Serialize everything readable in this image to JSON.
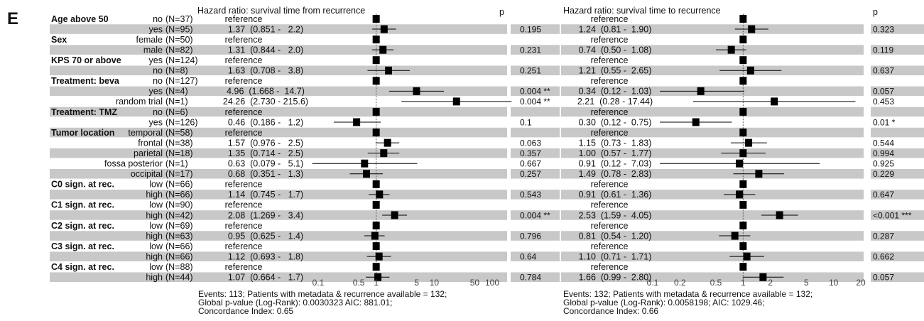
{
  "panel_letter": "E",
  "chart_data": [
    {
      "type": "forest",
      "title": "Hazard ratio: survival time from recurrence",
      "p_header": "p",
      "x_scale": "log",
      "xlim": [
        0.03,
        200
      ],
      "x_ticks": [
        "0.1",
        "0.5",
        "1",
        "5",
        "10",
        "50",
        "100"
      ],
      "reference_line": 1,
      "rows": [
        {
          "label": "Age above 50",
          "level": "no",
          "n": "(N=37)",
          "hr_text": "reference",
          "p": "",
          "hr": 1,
          "low": null,
          "high": null
        },
        {
          "label": "",
          "level": "yes",
          "n": "(N=95)",
          "hr_text": "1.37  (0.851 -   2.2)",
          "p": "0.195",
          "hr": 1.37,
          "low": 0.851,
          "high": 2.2
        },
        {
          "label": "Sex",
          "level": "female",
          "n": "(N=50)",
          "hr_text": "reference",
          "p": "",
          "hr": 1,
          "low": null,
          "high": null
        },
        {
          "label": "",
          "level": "male",
          "n": "(N=82)",
          "hr_text": "1.31  (0.844 -   2.0)",
          "p": "0.231",
          "hr": 1.31,
          "low": 0.844,
          "high": 2.0
        },
        {
          "label": "KPS 70 or above",
          "level": "yes",
          "n": "(N=124)",
          "hr_text": "reference",
          "p": "",
          "hr": 1,
          "low": null,
          "high": null
        },
        {
          "label": "",
          "level": "no",
          "n": "(N=8)",
          "hr_text": "1.63  (0.708 -   3.8)",
          "p": "0.251",
          "hr": 1.63,
          "low": 0.708,
          "high": 3.8
        },
        {
          "label": "Treatment: beva",
          "level": "no",
          "n": "(N=127)",
          "hr_text": "reference",
          "p": "",
          "hr": 1,
          "low": null,
          "high": null
        },
        {
          "label": "",
          "level": "yes",
          "n": "(N=4)",
          "hr_text": "4.96  (1.668 -  14.7)",
          "p": "0.004 **",
          "hr": 4.96,
          "low": 1.668,
          "high": 14.7
        },
        {
          "label": "",
          "level": "random trial",
          "n": "(N=1)",
          "hr_text": "24.26  (2.730 - 215.6)",
          "p": "0.004 **",
          "hr": 24.26,
          "low": 2.73,
          "high": 215.6
        },
        {
          "label": "Treatment: TMZ",
          "level": "no",
          "n": "(N=6)",
          "hr_text": "reference",
          "p": "",
          "hr": 1,
          "low": null,
          "high": null
        },
        {
          "label": "",
          "level": "yes",
          "n": "(N=126)",
          "hr_text": "0.46  (0.186 -   1.2)",
          "p": "0.1",
          "hr": 0.46,
          "low": 0.186,
          "high": 1.2
        },
        {
          "label": "Tumor location",
          "level": "temporal",
          "n": "(N=58)",
          "hr_text": "reference",
          "p": "",
          "hr": 1,
          "low": null,
          "high": null
        },
        {
          "label": "",
          "level": "frontal",
          "n": "(N=38)",
          "hr_text": "1.57  (0.976 -   2.5)",
          "p": "0.063",
          "hr": 1.57,
          "low": 0.976,
          "high": 2.5
        },
        {
          "label": "",
          "level": "parietal",
          "n": "(N=18)",
          "hr_text": "1.35  (0.714 -   2.5)",
          "p": "0.357",
          "hr": 1.35,
          "low": 0.714,
          "high": 2.5
        },
        {
          "label": "",
          "level": "fossa posterior",
          "n": "(N=1)",
          "hr_text": "0.63  (0.079 -   5.1)",
          "p": "0.667",
          "hr": 0.63,
          "low": 0.079,
          "high": 5.1
        },
        {
          "label": "",
          "level": "occipital",
          "n": "(N=17)",
          "hr_text": "0.68  (0.351 -   1.3)",
          "p": "0.257",
          "hr": 0.68,
          "low": 0.351,
          "high": 1.3
        },
        {
          "label": "C0 sign. at rec.",
          "level": "low",
          "n": "(N=66)",
          "hr_text": "reference",
          "p": "",
          "hr": 1,
          "low": null,
          "high": null
        },
        {
          "label": "",
          "level": "high",
          "n": "(N=66)",
          "hr_text": "1.14  (0.745 -   1.7)",
          "p": "0.543",
          "hr": 1.14,
          "low": 0.745,
          "high": 1.7
        },
        {
          "label": "C1 sign. at rec.",
          "level": "low",
          "n": "(N=90)",
          "hr_text": "reference",
          "p": "",
          "hr": 1,
          "low": null,
          "high": null
        },
        {
          "label": "",
          "level": "high",
          "n": "(N=42)",
          "hr_text": "2.08  (1.269 -   3.4)",
          "p": "0.004 **",
          "hr": 2.08,
          "low": 1.269,
          "high": 3.4
        },
        {
          "label": "C2 sign. at rec.",
          "level": "low",
          "n": "(N=69)",
          "hr_text": "reference",
          "p": "",
          "hr": 1,
          "low": null,
          "high": null
        },
        {
          "label": "",
          "level": "high",
          "n": "(N=63)",
          "hr_text": "0.95  (0.625 -   1.4)",
          "p": "0.796",
          "hr": 0.95,
          "low": 0.625,
          "high": 1.4
        },
        {
          "label": "C3 sign. at rec.",
          "level": "low",
          "n": "(N=66)",
          "hr_text": "reference",
          "p": "",
          "hr": 1,
          "low": null,
          "high": null
        },
        {
          "label": "",
          "level": "high",
          "n": "(N=66)",
          "hr_text": "1.12  (0.693 -   1.8)",
          "p": "0.64",
          "hr": 1.12,
          "low": 0.693,
          "high": 1.8
        },
        {
          "label": "C4 sign. at rec.",
          "level": "low",
          "n": "(N=88)",
          "hr_text": "reference",
          "p": "",
          "hr": 1,
          "low": null,
          "high": null
        },
        {
          "label": "",
          "level": "high",
          "n": "(N=44)",
          "hr_text": "1.07  (0.664 -   1.7)",
          "p": "0.784",
          "hr": 1.07,
          "low": 0.664,
          "high": 1.7
        }
      ],
      "footer": [
        "Events: 113; Patients with metadata & recurrence available = 132;",
        "Global p-value (Log-Rank): 0.0030323 AIC: 881.01;",
        "Concordance Index: 0.65"
      ]
    },
    {
      "type": "forest",
      "title": "Hazard ratio: survival time to recurrence",
      "p_header": "p",
      "x_scale": "log",
      "xlim": [
        0.055,
        30
      ],
      "x_ticks": [
        "0.1",
        "0.2",
        "0.5",
        "1",
        "2",
        "5",
        "10",
        "20"
      ],
      "reference_line": 1,
      "rows": [
        {
          "hr_text": "reference",
          "p": "",
          "hr": 1,
          "low": null,
          "high": null
        },
        {
          "hr_text": "1.24  (0.81 -  1.90)",
          "p": "0.323",
          "hr": 1.24,
          "low": 0.81,
          "high": 1.9
        },
        {
          "hr_text": "reference",
          "p": "",
          "hr": 1,
          "low": null,
          "high": null
        },
        {
          "hr_text": "0.74  (0.50 -  1.08)",
          "p": "0.119",
          "hr": 0.74,
          "low": 0.5,
          "high": 1.08
        },
        {
          "hr_text": "reference",
          "p": "",
          "hr": 1,
          "low": null,
          "high": null
        },
        {
          "hr_text": "1.21  (0.55 -  2.65)",
          "p": "0.637",
          "hr": 1.21,
          "low": 0.55,
          "high": 2.65
        },
        {
          "hr_text": "reference",
          "p": "",
          "hr": 1,
          "low": null,
          "high": null
        },
        {
          "hr_text": "0.34  (0.12 -  1.03)",
          "p": "0.057",
          "hr": 0.34,
          "low": 0.12,
          "high": 1.03
        },
        {
          "hr_text": "2.21  (0.28 - 17.44)",
          "p": "0.453",
          "hr": 2.21,
          "low": 0.28,
          "high": 17.44
        },
        {
          "hr_text": "reference",
          "p": "",
          "hr": 1,
          "low": null,
          "high": null
        },
        {
          "hr_text": "0.30  (0.12 -  0.75)",
          "p": "0.01 *",
          "hr": 0.3,
          "low": 0.12,
          "high": 0.75
        },
        {
          "hr_text": "reference",
          "p": "",
          "hr": 1,
          "low": null,
          "high": null
        },
        {
          "hr_text": "1.15  (0.73 -  1.83)",
          "p": "0.544",
          "hr": 1.15,
          "low": 0.73,
          "high": 1.83
        },
        {
          "hr_text": "1.00  (0.57 -  1.77)",
          "p": "0.994",
          "hr": 1.0,
          "low": 0.57,
          "high": 1.77
        },
        {
          "hr_text": "0.91  (0.12 -  7.03)",
          "p": "0.925",
          "hr": 0.91,
          "low": 0.12,
          "high": 7.03
        },
        {
          "hr_text": "1.49  (0.78 -  2.83)",
          "p": "0.229",
          "hr": 1.49,
          "low": 0.78,
          "high": 2.83
        },
        {
          "hr_text": "reference",
          "p": "",
          "hr": 1,
          "low": null,
          "high": null
        },
        {
          "hr_text": "0.91  (0.61 -  1.36)",
          "p": "0.647",
          "hr": 0.91,
          "low": 0.61,
          "high": 1.36
        },
        {
          "hr_text": "reference",
          "p": "",
          "hr": 1,
          "low": null,
          "high": null
        },
        {
          "hr_text": "2.53  (1.59 -  4.05)",
          "p": "<0.001 ***",
          "hr": 2.53,
          "low": 1.59,
          "high": 4.05
        },
        {
          "hr_text": "reference",
          "p": "",
          "hr": 1,
          "low": null,
          "high": null
        },
        {
          "hr_text": "0.81  (0.54 -  1.20)",
          "p": "0.287",
          "hr": 0.81,
          "low": 0.54,
          "high": 1.2
        },
        {
          "hr_text": "reference",
          "p": "",
          "hr": 1,
          "low": null,
          "high": null
        },
        {
          "hr_text": "1.10  (0.71 -  1.71)",
          "p": "0.662",
          "hr": 1.1,
          "low": 0.71,
          "high": 1.71
        },
        {
          "hr_text": "reference",
          "p": "",
          "hr": 1,
          "low": null,
          "high": null
        },
        {
          "hr_text": "1.66  (0.99 -  2.80)",
          "p": "0.057",
          "hr": 1.66,
          "low": 0.99,
          "high": 2.8
        }
      ],
      "footer": [
        "Events: 132; Patients with metadata & recurrence available = 132;",
        "Global p-value (Log-Rank): 0.0058198; AIC: 1029.46;",
        "Concordance Index: 0.66"
      ]
    }
  ],
  "colors": {
    "band": "#c8c8c8",
    "box": "#000000",
    "ci_line": "#000000",
    "reference_line": "#555555",
    "text": "#111111",
    "tick_text": "#444444"
  }
}
